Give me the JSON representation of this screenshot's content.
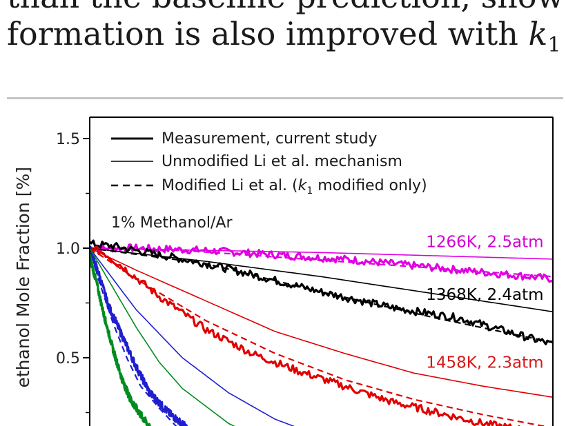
{
  "caption": {
    "line_prev": "than the baseline prediction, showing that",
    "line_text": "formation is also improved with ",
    "var_letter": "k",
    "var_sub": "1"
  },
  "colors": {
    "magenta": "#e000e0",
    "black": "#000000",
    "red": "#e00000",
    "blue": "#1f1fd0",
    "green": "#008c1e",
    "frame": "#000000",
    "label_magenta": "#d200d2",
    "label_red": "#d81818"
  },
  "chart_data": {
    "type": "line",
    "ylabel": "ethanol Mole Fraction [%]",
    "ylim": [
      0.0,
      1.6
    ],
    "yticks": [
      0.5,
      1.0,
      1.5
    ],
    "ytick_labels": [
      "0.5",
      "1.0",
      "1.5"
    ],
    "xlim": [
      0.0,
      1.0
    ],
    "legend": {
      "placement": "top-left",
      "entries": [
        {
          "label": "Measurement, current study",
          "style": "thick-solid"
        },
        {
          "label": "Unmodified Li et al. mechanism",
          "style": "thin-solid"
        },
        {
          "label_pre": "Modified Li et al. (",
          "label_var": "k",
          "label_sub": "1",
          "label_post": " modified only)",
          "style": "dashed"
        }
      ]
    },
    "annotation": "1% Methanol/Ar",
    "series": [
      {
        "label": "1266K, 2.5atm",
        "color_key": "magenta",
        "label_color_key": "label_magenta",
        "label_anchor": [
          0.98,
          1.03
        ],
        "measurement": {
          "x": [
            0,
            0.1,
            0.25,
            0.4,
            0.55,
            0.7,
            0.85,
            1.0
          ],
          "y": [
            1.0,
            1.0,
            0.99,
            0.97,
            0.95,
            0.92,
            0.89,
            0.86
          ]
        },
        "unmodified": {
          "x": [
            0,
            0.25,
            0.5,
            0.75,
            1.0
          ],
          "y": [
            1.0,
            0.99,
            0.98,
            0.965,
            0.95
          ]
        },
        "modified": {
          "x": [
            0,
            0.2,
            0.4,
            0.6,
            0.8,
            1.0
          ],
          "y": [
            1.0,
            0.99,
            0.96,
            0.93,
            0.9,
            0.87
          ]
        }
      },
      {
        "label": "1368K, 2.4atm",
        "color_key": "black",
        "label_color_key": "black",
        "label_anchor": [
          0.98,
          0.79
        ],
        "measurement": {
          "x": [
            0,
            0.05,
            0.15,
            0.25,
            0.35,
            0.5,
            0.65,
            0.8,
            0.9,
            1.0
          ],
          "y": [
            1.02,
            1.01,
            0.97,
            0.93,
            0.88,
            0.8,
            0.73,
            0.68,
            0.62,
            0.56
          ]
        },
        "unmodified": {
          "x": [
            0,
            0.25,
            0.5,
            0.75,
            1.0
          ],
          "y": [
            1.0,
            0.94,
            0.87,
            0.79,
            0.71
          ]
        },
        "modified": {
          "x": [
            0,
            0.25,
            0.5,
            0.75,
            1.0
          ],
          "y": [
            1.0,
            0.93,
            0.8,
            0.68,
            0.57
          ]
        }
      },
      {
        "label": "1458K, 2.3atm",
        "color_key": "red",
        "label_color_key": "label_red",
        "label_anchor": [
          0.98,
          0.48
        ],
        "measurement": {
          "x": [
            0,
            0.03,
            0.08,
            0.15,
            0.25,
            0.35,
            0.45,
            0.55,
            0.65,
            0.75,
            0.85,
            1.0
          ],
          "y": [
            1.0,
            0.98,
            0.9,
            0.78,
            0.63,
            0.52,
            0.44,
            0.37,
            0.3,
            0.25,
            0.2,
            0.15
          ]
        },
        "unmodified": {
          "x": [
            0,
            0.1,
            0.25,
            0.4,
            0.55,
            0.7,
            0.85,
            1.0
          ],
          "y": [
            1.0,
            0.9,
            0.76,
            0.62,
            0.52,
            0.43,
            0.37,
            0.32
          ]
        },
        "modified": {
          "x": [
            0,
            0.1,
            0.25,
            0.4,
            0.55,
            0.7,
            0.85,
            1.0
          ],
          "y": [
            1.0,
            0.86,
            0.67,
            0.52,
            0.4,
            0.31,
            0.24,
            0.18
          ]
        }
      },
      {
        "label": "",
        "color_key": "blue",
        "measurement": {
          "x": [
            0,
            0.02,
            0.04,
            0.07,
            0.1,
            0.13,
            0.17,
            0.21
          ],
          "y": [
            1.0,
            0.88,
            0.74,
            0.6,
            0.46,
            0.34,
            0.25,
            0.18
          ]
        },
        "unmodified": {
          "x": [
            0,
            0.05,
            0.1,
            0.2,
            0.3,
            0.4,
            0.5
          ],
          "y": [
            1.0,
            0.86,
            0.72,
            0.5,
            0.34,
            0.22,
            0.14
          ]
        },
        "modified": {
          "x": [
            0,
            0.02,
            0.05,
            0.08,
            0.11,
            0.15,
            0.19
          ],
          "y": [
            1.0,
            0.85,
            0.66,
            0.5,
            0.37,
            0.27,
            0.18
          ]
        }
      },
      {
        "label": "",
        "color_key": "green",
        "measurement": {
          "x": [
            0,
            0.015,
            0.03,
            0.05,
            0.07,
            0.09,
            0.11,
            0.13
          ],
          "y": [
            0.96,
            0.84,
            0.7,
            0.54,
            0.4,
            0.3,
            0.24,
            0.18
          ]
        },
        "unmodified": {
          "x": [
            0,
            0.05,
            0.1,
            0.15,
            0.2,
            0.3,
            0.4
          ],
          "y": [
            1.0,
            0.82,
            0.64,
            0.48,
            0.36,
            0.2,
            0.1
          ]
        },
        "modified": {
          "x": [
            0,
            0.02,
            0.04,
            0.06,
            0.08,
            0.1,
            0.12
          ],
          "y": [
            0.98,
            0.8,
            0.62,
            0.47,
            0.36,
            0.28,
            0.21
          ]
        }
      }
    ]
  }
}
